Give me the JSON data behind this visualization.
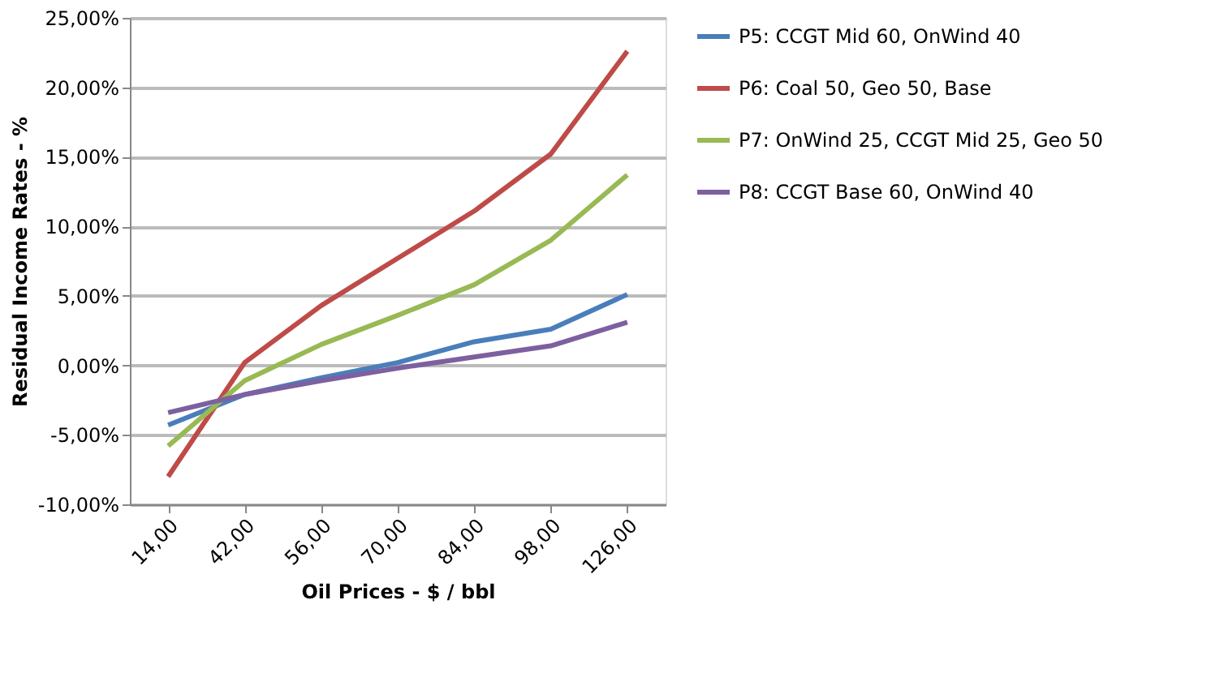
{
  "chart_data": {
    "type": "line",
    "xlabel": "Oil Prices - $ / bbl",
    "ylabel": "Residual Income Rates - %",
    "categories": [
      "14,00",
      "42,00",
      "56,00",
      "70,00",
      "84,00",
      "98,00",
      "126,00"
    ],
    "series": [
      {
        "name": "P5: CCGT Mid 60, OnWind 40",
        "color": "#4a7ebb",
        "values": [
          -4.3,
          -2.1,
          -0.9,
          0.2,
          1.7,
          2.6,
          5.1
        ]
      },
      {
        "name": "P6: Coal 50, Geo 50, Base",
        "color": "#be4b48",
        "values": [
          -8.0,
          0.2,
          4.3,
          7.7,
          11.1,
          15.2,
          22.6
        ]
      },
      {
        "name": "P7: OnWind 25, CCGT Mid 25, Geo 50",
        "color": "#98b954",
        "values": [
          -5.8,
          -1.1,
          1.5,
          3.6,
          5.8,
          9.0,
          13.7
        ]
      },
      {
        "name": "P8: CCGT Base 60, OnWind 40",
        "color": "#7d60a0",
        "values": [
          -3.4,
          -2.1,
          -1.1,
          -0.2,
          0.6,
          1.4,
          3.1
        ]
      }
    ],
    "ylim": [
      -10,
      25
    ],
    "yticks": [
      {
        "value": -10,
        "label": "-10,00%"
      },
      {
        "value": -5,
        "label": "-5,00%"
      },
      {
        "value": 0,
        "label": "0,00%"
      },
      {
        "value": 5,
        "label": "5,00%"
      },
      {
        "value": 10,
        "label": "10,00%"
      },
      {
        "value": 15,
        "label": "15,00%"
      },
      {
        "value": 20,
        "label": "20,00%"
      },
      {
        "value": 25,
        "label": "25,00%"
      }
    ],
    "grid": "y",
    "legend": "right",
    "marker": "none",
    "line_style": "solid"
  }
}
